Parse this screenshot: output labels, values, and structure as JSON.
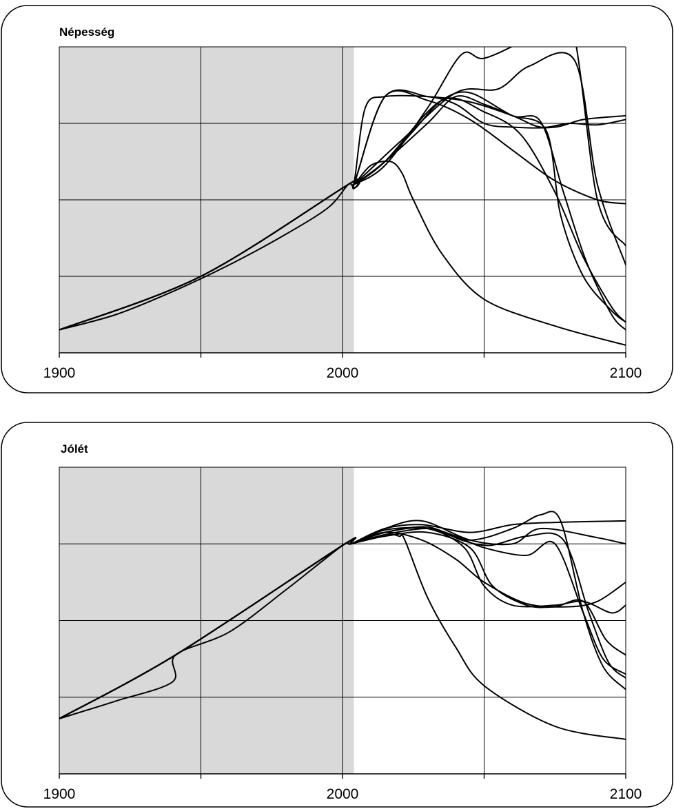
{
  "chart_data": [
    {
      "type": "line",
      "title": "Népesség",
      "xlabel": "",
      "ylabel": "",
      "xlim": [
        1900,
        2100
      ],
      "ylim": [
        0,
        4
      ],
      "xticks": [
        1900,
        2000,
        2100
      ],
      "x_gridlines": [
        1950,
        2000,
        2050
      ],
      "y_gridlines": [
        1,
        2,
        3
      ],
      "historical_until": 2004,
      "grid": true,
      "series": [
        {
          "x": [
            1900,
            1920,
            1940,
            1960,
            1980,
            1995,
            2002,
            2004,
            2010,
            2017,
            2021,
            2025,
            2035,
            2050,
            2075,
            2100
          ],
          "y": [
            0.3,
            0.5,
            0.8,
            1.15,
            1.55,
            1.9,
            2.2,
            2.2,
            2.45,
            2.5,
            2.35,
            2.0,
            1.3,
            0.7,
            0.35,
            0.1
          ]
        },
        {
          "x": [
            1900,
            1950,
            2002,
            2004,
            2008,
            2015,
            2030,
            2045,
            2060,
            2070,
            2080,
            2090,
            2100
          ],
          "y": [
            0.3,
            1.0,
            2.2,
            2.2,
            3.2,
            3.35,
            3.35,
            3.28,
            3.1,
            2.95,
            3.0,
            2.98,
            3.05
          ]
        },
        {
          "x": [
            1900,
            1950,
            2002,
            2004,
            2015,
            2030,
            2042,
            2050,
            2065,
            2080,
            2090,
            2100
          ],
          "y": [
            0.3,
            1.0,
            2.2,
            2.2,
            2.45,
            3.2,
            3.9,
            3.85,
            4.1,
            4.4,
            2.0,
            1.4
          ]
        },
        {
          "x": [
            1900,
            1950,
            2002,
            2004,
            2020,
            2040,
            2055,
            2066,
            2082,
            2090,
            2100
          ],
          "y": [
            0.3,
            1.0,
            2.2,
            2.2,
            2.75,
            3.4,
            3.45,
            3.75,
            3.82,
            2.2,
            1.15
          ]
        },
        {
          "x": [
            1900,
            1950,
            2002,
            2004,
            2015,
            2030,
            2040,
            2050,
            2060,
            2072,
            2077,
            2085,
            2095,
            2100
          ],
          "y": [
            0.3,
            1.0,
            2.2,
            2.2,
            2.5,
            3.0,
            3.35,
            3.25,
            3.1,
            2.9,
            1.8,
            1.0,
            0.55,
            0.4
          ]
        },
        {
          "x": [
            1900,
            1950,
            2002,
            2004,
            2015,
            2025,
            2035,
            2045,
            2060,
            2070,
            2078,
            2086,
            2095,
            2100
          ],
          "y": [
            0.3,
            1.0,
            2.2,
            2.2,
            2.5,
            2.9,
            3.3,
            3.4,
            3.1,
            3.02,
            2.1,
            1.2,
            0.5,
            0.3
          ]
        },
        {
          "x": [
            1900,
            1950,
            2002,
            2004,
            2015,
            2035,
            2050,
            2063,
            2075,
            2085,
            2095,
            2100
          ],
          "y": [
            0.3,
            1.0,
            2.2,
            2.2,
            2.5,
            3.3,
            3.15,
            2.85,
            2.1,
            1.25,
            0.6,
            0.4
          ]
        },
        {
          "x": [
            1900,
            1950,
            2002,
            2004,
            2015,
            2030,
            2040,
            2050,
            2060,
            2075,
            2085,
            2100
          ],
          "y": [
            0.3,
            1.0,
            2.2,
            2.2,
            3.35,
            3.35,
            3.25,
            3.0,
            2.95,
            2.95,
            3.05,
            3.1
          ]
        },
        {
          "x": [
            1900,
            1950,
            2002,
            2004,
            2015,
            2030,
            2045,
            2060,
            2075,
            2090,
            2100
          ],
          "y": [
            0.3,
            1.0,
            2.2,
            2.2,
            3.35,
            3.3,
            3.05,
            2.65,
            2.25,
            2.0,
            1.95
          ]
        }
      ]
    },
    {
      "type": "line",
      "title": "Jólét",
      "xlabel": "",
      "ylabel": "",
      "xlim": [
        1900,
        2100
      ],
      "ylim": [
        0,
        4
      ],
      "xticks": [
        1900,
        2000,
        2100
      ],
      "x_gridlines": [
        1950,
        2000,
        2050
      ],
      "y_gridlines": [
        1,
        2,
        3
      ],
      "historical_until": 2004,
      "grid": true,
      "series": [
        {
          "x": [
            1900,
            1920,
            1940,
            1941,
            1960,
            1980,
            2000,
            2003,
            2015,
            2020,
            2022,
            2030,
            2040,
            2050,
            2075,
            2100
          ],
          "y": [
            0.72,
            0.95,
            1.2,
            1.55,
            1.85,
            2.4,
            2.98,
            3.0,
            3.12,
            3.1,
            3.05,
            2.3,
            1.65,
            1.15,
            0.62,
            0.45
          ]
        },
        {
          "x": [
            1900,
            1941,
            2000,
            2003,
            2015,
            2028,
            2045,
            2060,
            2075,
            2100
          ],
          "y": [
            0.72,
            1.55,
            2.98,
            3.0,
            3.2,
            3.25,
            3.15,
            3.25,
            3.28,
            3.3
          ]
        },
        {
          "x": [
            1900,
            1941,
            2000,
            2003,
            2015,
            2028,
            2045,
            2060,
            2070,
            2090,
            2100
          ],
          "y": [
            0.72,
            1.55,
            2.98,
            3.0,
            3.2,
            3.3,
            3.05,
            3.0,
            3.2,
            3.08,
            3.0
          ]
        },
        {
          "x": [
            1900,
            1941,
            2000,
            2003,
            2015,
            2030,
            2043,
            2050,
            2060,
            2075,
            2085,
            2095,
            2100
          ],
          "y": [
            0.72,
            1.55,
            2.98,
            3.0,
            3.15,
            3.2,
            2.95,
            2.45,
            2.2,
            2.2,
            2.25,
            2.1,
            2.2
          ]
        },
        {
          "x": [
            1900,
            1941,
            2000,
            2003,
            2015,
            2030,
            2045,
            2060,
            2070,
            2077,
            2085,
            2092,
            2100
          ],
          "y": [
            0.72,
            1.55,
            2.98,
            3.0,
            3.18,
            3.2,
            3.05,
            3.2,
            3.38,
            3.3,
            2.1,
            1.4,
            1.1
          ]
        },
        {
          "x": [
            1900,
            1941,
            2000,
            2003,
            2015,
            2030,
            2045,
            2053,
            2065,
            2075,
            2085,
            2093,
            2100
          ],
          "y": [
            0.72,
            1.55,
            2.98,
            3.0,
            3.1,
            3.15,
            2.95,
            2.45,
            2.2,
            2.18,
            2.25,
            1.75,
            1.55
          ]
        },
        {
          "x": [
            1900,
            1941,
            2000,
            2003,
            2015,
            2030,
            2040,
            2050,
            2065,
            2075,
            2085,
            2092,
            2100
          ],
          "y": [
            0.72,
            1.55,
            2.98,
            3.0,
            3.12,
            3.2,
            3.1,
            2.95,
            2.85,
            3.0,
            2.1,
            1.5,
            1.3
          ]
        },
        {
          "x": [
            1900,
            1941,
            2000,
            2003,
            2015,
            2030,
            2042,
            2052,
            2065,
            2078,
            2087,
            2094,
            2100
          ],
          "y": [
            0.72,
            1.55,
            2.98,
            3.0,
            3.15,
            3.22,
            3.05,
            2.98,
            3.1,
            3.05,
            2.1,
            1.45,
            1.25
          ]
        },
        {
          "x": [
            1900,
            1941,
            2000,
            2003,
            2015,
            2028,
            2040,
            2050,
            2065,
            2080,
            2090,
            2100
          ],
          "y": [
            0.72,
            1.55,
            2.98,
            3.0,
            3.15,
            3.05,
            2.8,
            2.5,
            2.22,
            2.18,
            2.25,
            2.5
          ]
        }
      ]
    }
  ]
}
